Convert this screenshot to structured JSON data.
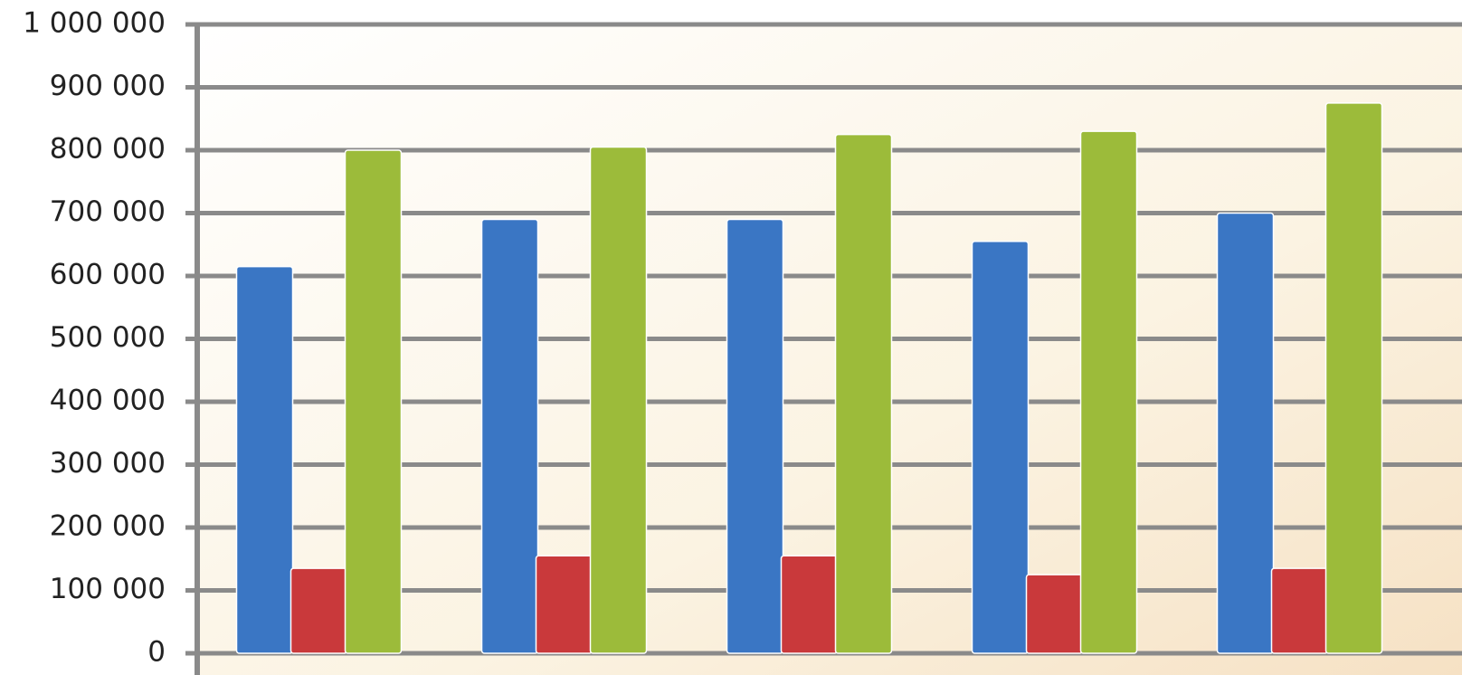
{
  "chart_data": {
    "type": "bar",
    "categories": [
      null,
      null,
      null,
      null,
      null
    ],
    "series": [
      {
        "color": "#3a76c4",
        "values": [
          615000,
          690000,
          690000,
          655000,
          700000
        ]
      },
      {
        "color": "#c9393b",
        "values": [
          135000,
          155000,
          155000,
          125000,
          135000
        ]
      },
      {
        "color": "#9cbb3a",
        "values": [
          800000,
          805000,
          825000,
          830000,
          875000
        ]
      }
    ],
    "ylim": [
      0,
      1000000
    ],
    "yticks": [
      0,
      {
        "value": 100000,
        "label": "100 000"
      },
      {
        "value": 200000,
        "label": "200 000"
      },
      {
        "value": 300000,
        "label": "300 000"
      },
      {
        "value": 400000,
        "label": "400 000"
      },
      {
        "value": 500000,
        "label": "500 000"
      },
      {
        "value": 600000,
        "label": "600 000"
      },
      {
        "value": 700000,
        "label": "700 000"
      },
      {
        "value": 800000,
        "label": "800 000"
      },
      {
        "value": 900000,
        "label": "900 000"
      },
      {
        "value": 1000000,
        "label": "1 000 000"
      }
    ],
    "grid": true
  }
}
